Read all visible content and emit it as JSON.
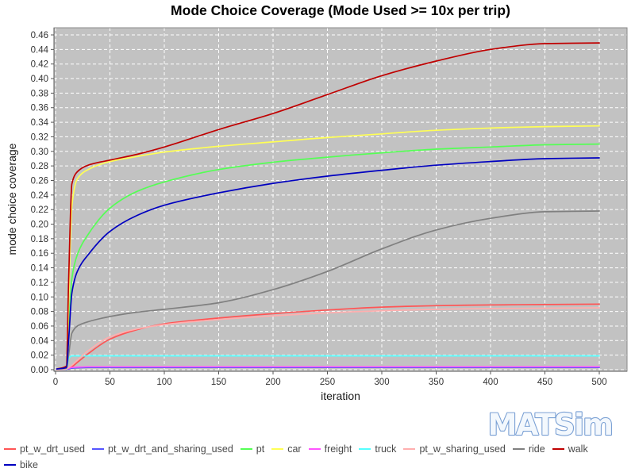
{
  "logo": {
    "text": "MATSim",
    "fill": "#f3f8fd",
    "outline": "#7aa0d4"
  },
  "chart_data": {
    "type": "line",
    "title": "Mode Choice Coverage (Mode Used >= 10x per trip)",
    "xlabel": "iteration",
    "ylabel": "mode choice coverage",
    "xlim": [
      0,
      525
    ],
    "ylim": [
      0,
      0.47
    ],
    "x_ticks": [
      0,
      50,
      100,
      150,
      200,
      250,
      300,
      350,
      400,
      450,
      500
    ],
    "y_ticks": [
      0.0,
      0.02,
      0.04,
      0.06,
      0.08,
      0.1,
      0.12,
      0.14,
      0.16,
      0.18,
      0.2,
      0.22,
      0.24,
      0.26,
      0.28,
      0.3,
      0.32,
      0.34,
      0.36,
      0.38,
      0.4,
      0.42,
      0.44,
      0.46
    ],
    "grid": "dashed",
    "grid_color": "#ffffff",
    "plot_bg": "#c2c2c2",
    "plot_border": "#888888",
    "axis_line_color": "#555555",
    "tick_label_color": "#333333",
    "legend_position": "bottom",
    "x": [
      1,
      10,
      12,
      15,
      20,
      30,
      50,
      75,
      100,
      150,
      200,
      250,
      300,
      350,
      400,
      450,
      500
    ],
    "series": [
      {
        "name": "pt_w_drt_used",
        "color": "#ff5555",
        "y": [
          0.0,
          0.001,
          0.002,
          0.004,
          0.01,
          0.022,
          0.042,
          0.055,
          0.063,
          0.071,
          0.077,
          0.082,
          0.086,
          0.088,
          0.089,
          0.0895,
          0.09
        ]
      },
      {
        "name": "pt_w_drt_and_sharing_used",
        "color": "#5555ff",
        "y": [
          0.0,
          0.0005,
          0.001,
          0.002,
          0.0025,
          0.003,
          0.003,
          0.003,
          0.003,
          0.003,
          0.003,
          0.003,
          0.003,
          0.003,
          0.003,
          0.003,
          0.003
        ]
      },
      {
        "name": "pt",
        "color": "#55ff55",
        "y": [
          0.001,
          0.003,
          0.05,
          0.125,
          0.158,
          0.186,
          0.222,
          0.245,
          0.258,
          0.275,
          0.285,
          0.292,
          0.298,
          0.303,
          0.306,
          0.309,
          0.31
        ]
      },
      {
        "name": "car",
        "color": "#ffff55",
        "y": [
          0.001,
          0.004,
          0.09,
          0.225,
          0.262,
          0.275,
          0.286,
          0.293,
          0.299,
          0.307,
          0.313,
          0.319,
          0.324,
          0.329,
          0.332,
          0.334,
          0.335
        ]
      },
      {
        "name": "freight",
        "color": "#ff55ff",
        "y": [
          0.0,
          0.001,
          0.002,
          0.003,
          0.0035,
          0.004,
          0.004,
          0.004,
          0.004,
          0.004,
          0.004,
          0.004,
          0.004,
          0.004,
          0.004,
          0.004,
          0.004
        ]
      },
      {
        "name": "truck",
        "color": "#55ffff",
        "y": [
          0.0,
          0.001,
          0.015,
          0.019,
          0.019,
          0.019,
          0.019,
          0.019,
          0.019,
          0.019,
          0.019,
          0.019,
          0.019,
          0.019,
          0.019,
          0.019,
          0.019
        ]
      },
      {
        "name": "pt_w_sharing_used",
        "color": "#ffafaf",
        "y": [
          0.0,
          0.001,
          0.003,
          0.006,
          0.013,
          0.026,
          0.045,
          0.056,
          0.062,
          0.069,
          0.074,
          0.078,
          0.081,
          0.083,
          0.084,
          0.0845,
          0.085
        ]
      },
      {
        "name": "ride",
        "color": "#808080",
        "y": [
          0.001,
          0.002,
          0.02,
          0.05,
          0.06,
          0.066,
          0.073,
          0.079,
          0.083,
          0.092,
          0.11,
          0.135,
          0.166,
          0.192,
          0.208,
          0.217,
          0.218
        ]
      },
      {
        "name": "walk",
        "color": "#c00000",
        "y": [
          0.001,
          0.005,
          0.12,
          0.255,
          0.272,
          0.281,
          0.288,
          0.296,
          0.306,
          0.33,
          0.352,
          0.378,
          0.404,
          0.424,
          0.44,
          0.448,
          0.449
        ]
      },
      {
        "name": "bike",
        "color": "#0000c0",
        "y": [
          0.001,
          0.003,
          0.04,
          0.105,
          0.135,
          0.158,
          0.19,
          0.212,
          0.226,
          0.243,
          0.256,
          0.266,
          0.274,
          0.281,
          0.286,
          0.29,
          0.291
        ]
      }
    ],
    "legend_rows": [
      [
        "pt_w_drt_used",
        "pt_w_drt_and_sharing_used",
        "pt",
        "car",
        "freight",
        "truck",
        "pt_w_sharing_used",
        "ride",
        "walk"
      ],
      [
        "bike"
      ]
    ]
  }
}
